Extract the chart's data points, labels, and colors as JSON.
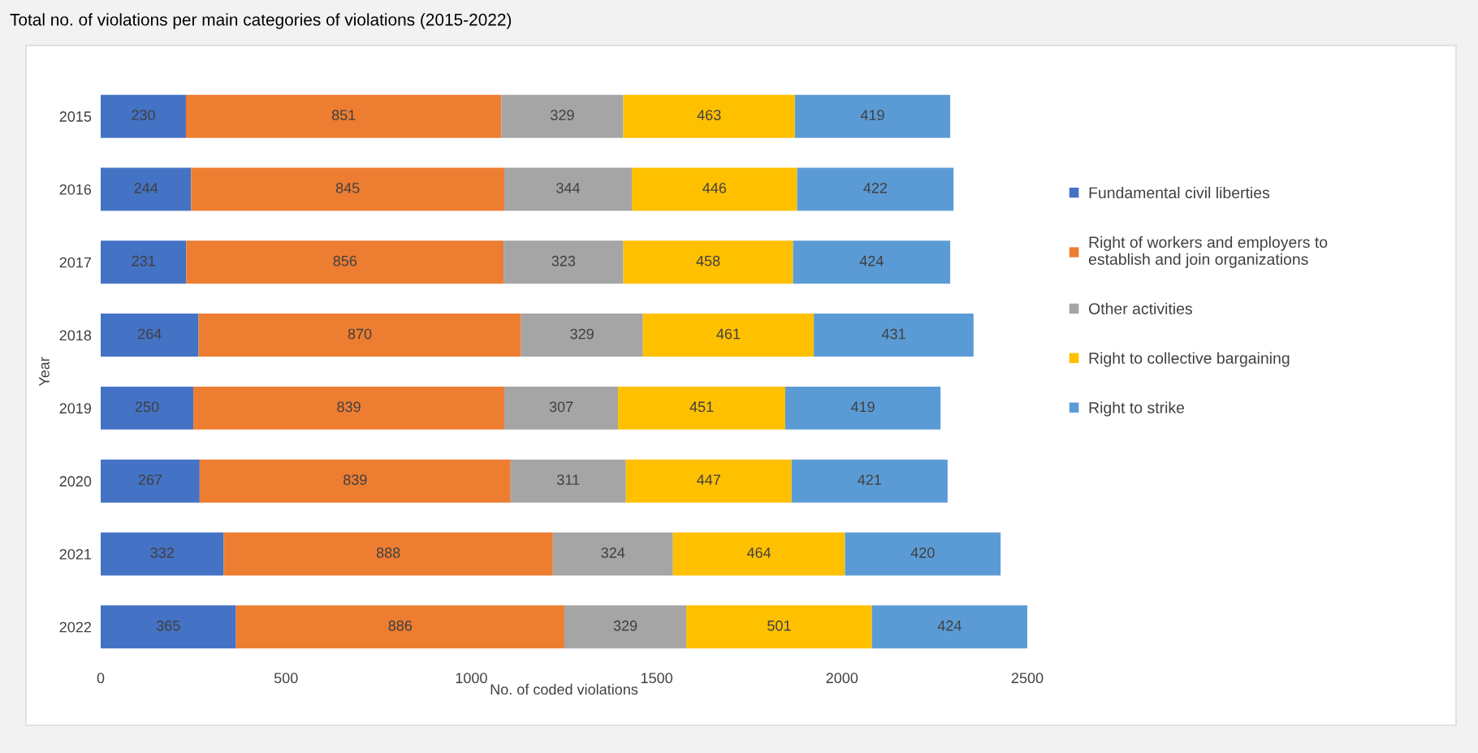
{
  "chart_data": {
    "type": "bar",
    "orientation": "horizontal",
    "stacked": true,
    "title": "Total no. of violations per main categories of violations (2015-2022)",
    "xlabel": "No. of coded violations",
    "ylabel": "Year",
    "categories": [
      "2015",
      "2016",
      "2017",
      "2018",
      "2019",
      "2020",
      "2021",
      "2022"
    ],
    "series": [
      {
        "name": "Fundamental civil liberties",
        "color": "#4472c4",
        "values": [
          230,
          244,
          231,
          264,
          250,
          267,
          332,
          365
        ]
      },
      {
        "name": "Right of workers and employers to establish and join organizations",
        "color": "#ed7d31",
        "values": [
          851,
          845,
          856,
          870,
          839,
          839,
          888,
          886
        ]
      },
      {
        "name": "Other activities",
        "color": "#a5a5a5",
        "values": [
          329,
          344,
          323,
          329,
          307,
          311,
          324,
          329
        ]
      },
      {
        "name": "Right to collective bargaining",
        "color": "#ffc000",
        "values": [
          463,
          446,
          458,
          461,
          451,
          447,
          464,
          501
        ]
      },
      {
        "name": "Right to strike",
        "color": "#5b9bd5",
        "values": [
          419,
          422,
          424,
          431,
          419,
          421,
          420,
          424
        ]
      }
    ],
    "xlim": [
      0,
      2500
    ],
    "xticks": [
      0,
      500,
      1000,
      1500,
      2000,
      2500
    ],
    "data_labels": true,
    "grid": false,
    "legend": "right"
  }
}
